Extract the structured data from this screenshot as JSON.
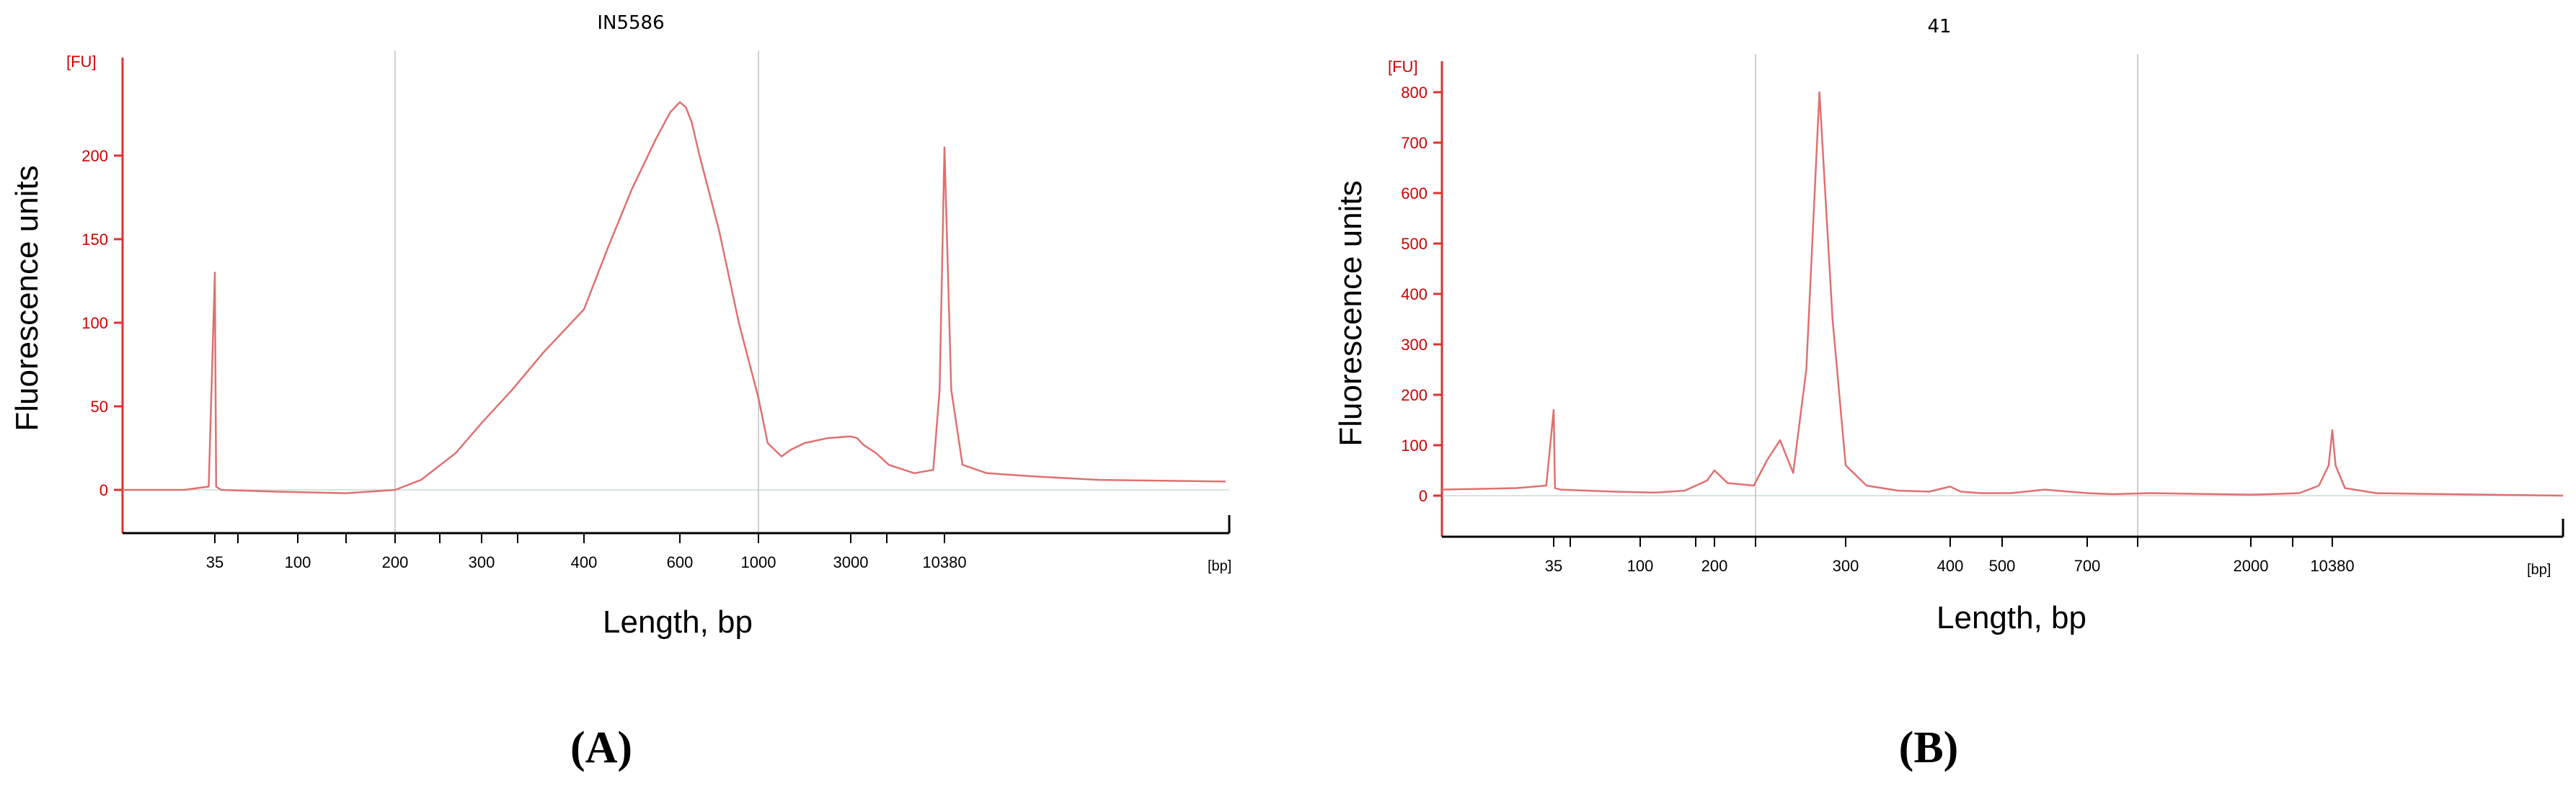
{
  "chart_data": [
    {
      "panel": "(A)",
      "type": "line",
      "title": "IN5586",
      "ylabel": "Fluorescence units",
      "xlabel": "Length, bp",
      "yunit": "[FU]",
      "xunit": "[bp]",
      "ylim": [
        -25,
        250
      ],
      "yticks": [
        0,
        50,
        100,
        150,
        200
      ],
      "xticks": [
        "35",
        "100",
        "200",
        "300",
        "400",
        "600",
        "1000",
        "3000",
        "10380"
      ],
      "grid": false,
      "color": "#e07070",
      "series": [
        {
          "x": [
            20,
            30,
            34,
            35,
            36,
            40,
            80,
            150,
            200,
            230,
            270,
            300,
            330,
            360,
            400,
            450,
            500,
            550,
            580,
            600,
            630,
            660,
            700,
            800,
            900,
            1000,
            1200,
            1500,
            1700,
            2000,
            2500,
            3000,
            3500,
            4000,
            5000,
            6000,
            8000,
            9500,
            10000,
            10380,
            10800,
            11500,
            13000,
            16000,
            20000,
            30000
          ],
          "y": [
            0,
            0,
            2,
            130,
            2,
            0,
            -1,
            -2,
            0,
            6,
            22,
            40,
            60,
            82,
            108,
            145,
            180,
            210,
            226,
            232,
            229,
            220,
            200,
            155,
            100,
            55,
            28,
            20,
            24,
            28,
            31,
            32,
            31,
            27,
            22,
            15,
            10,
            12,
            60,
            205,
            60,
            15,
            10,
            8,
            6,
            5
          ]
        }
      ]
    },
    {
      "panel": "(B)",
      "type": "line",
      "title": "41",
      "ylabel": "Fluorescence units",
      "xlabel": "Length, bp",
      "yunit": "[FU]",
      "xunit": "[bp]",
      "ylim": [
        -90,
        850
      ],
      "yticks": [
        0,
        100,
        200,
        300,
        400,
        500,
        600,
        700,
        800
      ],
      "xticks": [
        "35",
        "100",
        "200",
        "300",
        "400",
        "500",
        "700",
        "2000",
        "10380"
      ],
      "grid": false,
      "color": "#e07070",
      "series": [
        {
          "x": [
            20,
            30,
            34,
            35,
            36,
            40,
            80,
            120,
            160,
            190,
            200,
            210,
            230,
            240,
            250,
            260,
            270,
            280,
            290,
            300,
            320,
            350,
            380,
            400,
            420,
            460,
            520,
            600,
            700,
            900,
            1200,
            2000,
            4000,
            7000,
            9000,
            10000,
            10380,
            10800,
            12000,
            16000,
            25000,
            40000
          ],
          "y": [
            12,
            15,
            20,
            170,
            15,
            12,
            8,
            6,
            10,
            30,
            50,
            25,
            20,
            70,
            110,
            45,
            250,
            800,
            350,
            60,
            20,
            10,
            8,
            18,
            8,
            5,
            5,
            12,
            5,
            3,
            5,
            2,
            3,
            5,
            20,
            60,
            130,
            60,
            15,
            5,
            3,
            0
          ]
        }
      ]
    }
  ]
}
